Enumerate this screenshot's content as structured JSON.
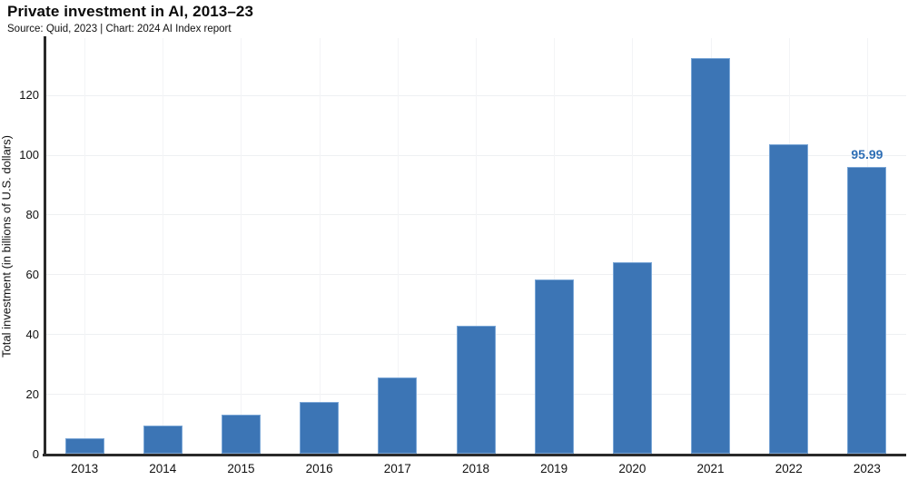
{
  "header": {
    "title": "Private investment in AI, 2013–23",
    "subtitle": "Source: Quid, 2023 | Chart: 2024 AI Index report"
  },
  "chart_data": {
    "type": "bar",
    "title": "Private investment in AI, 2013–23",
    "subtitle": "Source: Quid, 2023 | Chart: 2024 AI Index report",
    "categories": [
      "2013",
      "2014",
      "2015",
      "2016",
      "2017",
      "2018",
      "2019",
      "2020",
      "2021",
      "2022",
      "2023"
    ],
    "values": [
      5.1,
      9.3,
      13.2,
      17.2,
      25.4,
      42.8,
      58.3,
      63.9,
      132.4,
      103.4,
      95.99
    ],
    "xlabel": "",
    "ylabel": "Total investment (in billions of U.S. dollars)",
    "yticks": [
      0,
      20,
      40,
      60,
      80,
      100,
      120
    ],
    "ylim": [
      0,
      139
    ],
    "grid": true,
    "legend_position": "none",
    "annotations": [
      {
        "category": "2023",
        "text": "95.99",
        "color": "#2d6eb5"
      }
    ],
    "colors": {
      "bar_fill": "#3c75b5",
      "bar_border": "#7aa6d6",
      "axis": "#2a2a2a",
      "grid": "#eef0f2",
      "text": "#111111",
      "background": "#ffffff"
    }
  }
}
